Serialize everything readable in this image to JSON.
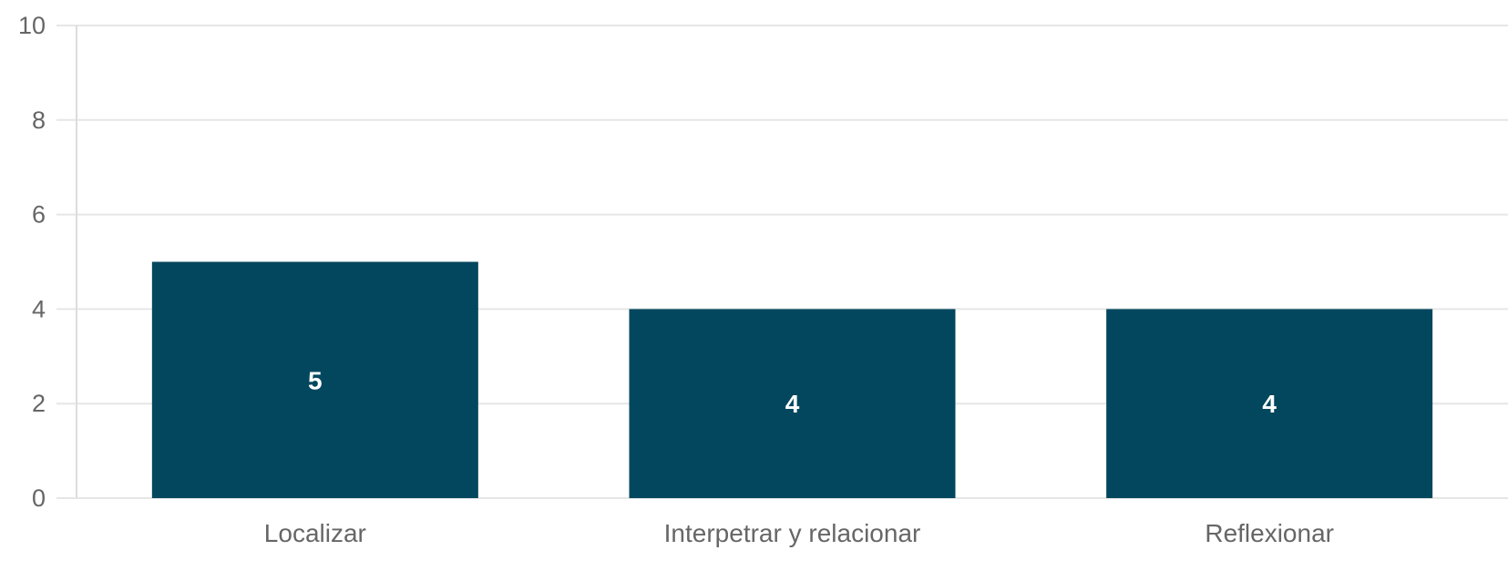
{
  "chart_data": {
    "type": "bar",
    "categories": [
      "Localizar",
      "Interpetrar y relacionar",
      "Reflexionar"
    ],
    "values": [
      5,
      4,
      4
    ],
    "data_labels": [
      "5",
      "4",
      "4"
    ],
    "title": "",
    "xlabel": "",
    "ylabel": "",
    "ylim": [
      0,
      10
    ],
    "yticks": [
      0,
      2,
      4,
      6,
      8,
      10
    ],
    "ytick_labels": [
      "0",
      "2",
      "4",
      "6",
      "8",
      "10"
    ],
    "grid": true,
    "legend": "none",
    "colors": {
      "bar": "#02475e",
      "grid": "#e6e6e6",
      "text": "#666666",
      "data_label": "#ffffff"
    }
  }
}
